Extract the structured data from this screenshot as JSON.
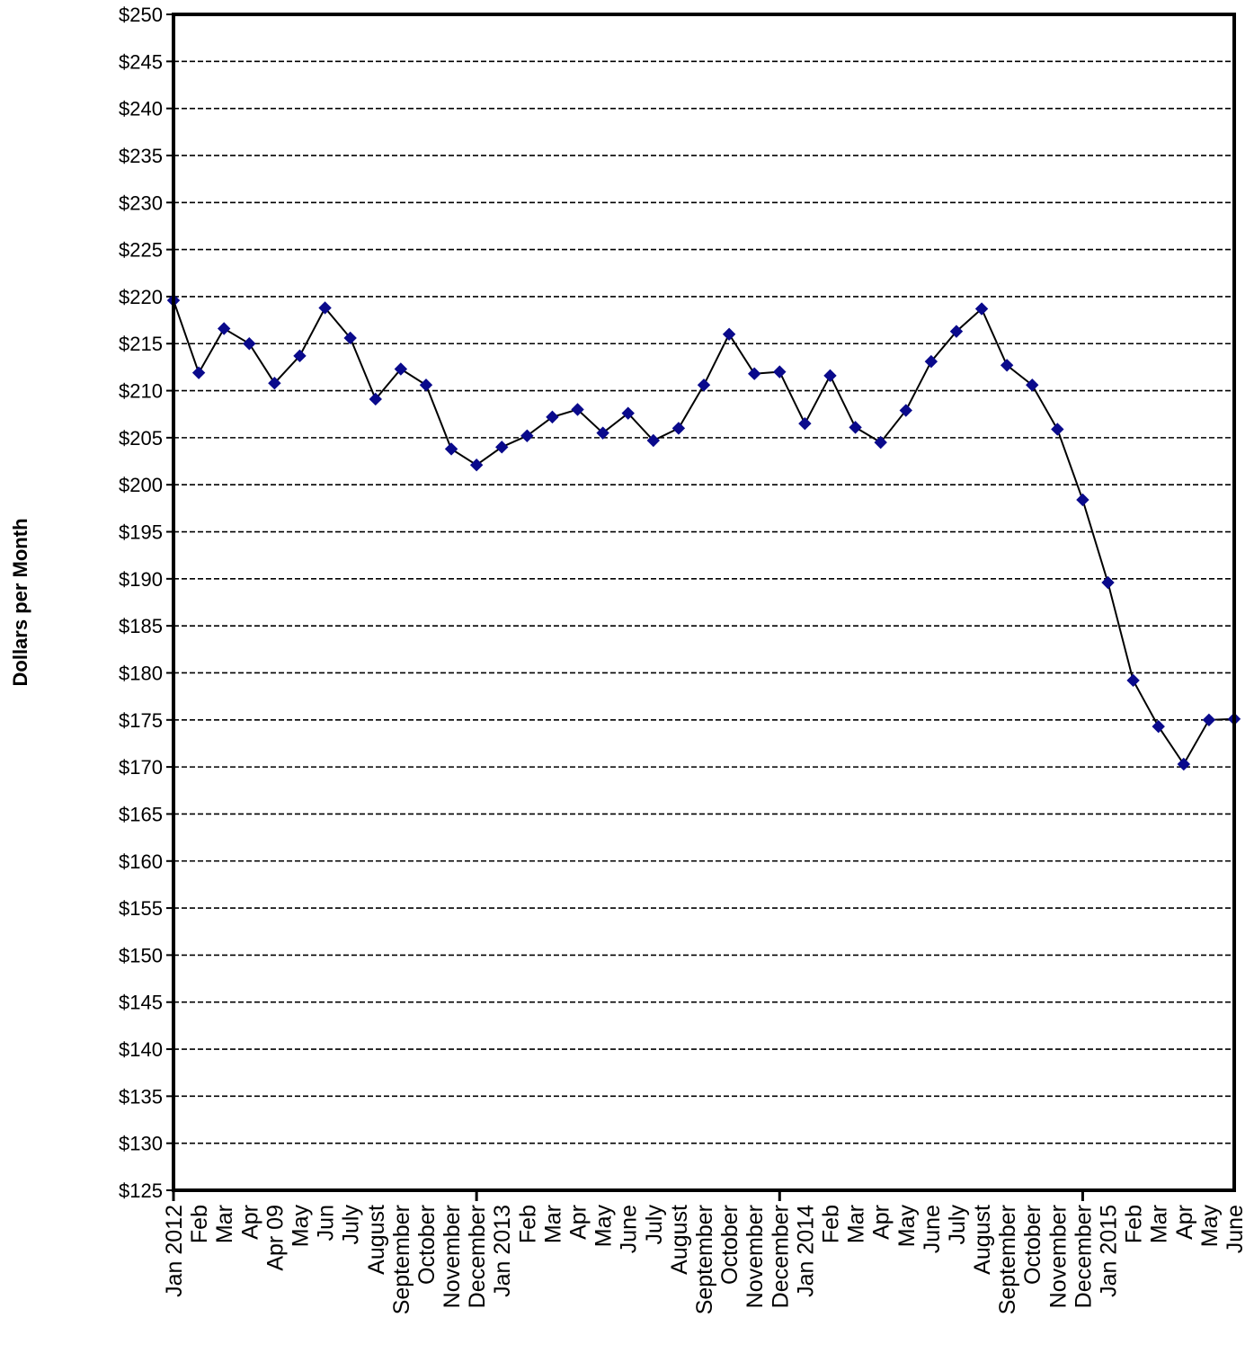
{
  "colors": {
    "line": "#000000",
    "marker": "#0A0A8C",
    "grid": "#000000",
    "background": "#ffffff"
  },
  "chart_data": {
    "type": "line",
    "title": "",
    "xlabel": "",
    "ylabel": "Dollars per Month",
    "ylim": [
      125,
      250
    ],
    "ytick_step": 5,
    "ytick_prefix": "$",
    "grid": true,
    "grid_style": "dashed",
    "legend": "none",
    "categories": [
      "Jan 2012",
      "Feb",
      "Mar",
      "Apr",
      "Apr 09",
      "May",
      "Jun",
      "July",
      "August",
      "September",
      "October",
      "November",
      "December",
      "Jan 2013",
      "Feb",
      "Mar",
      "Apr",
      "May",
      "June",
      "July",
      "August",
      "September",
      "October",
      "November",
      "December",
      "Jan 2014",
      "Feb",
      "Mar",
      "Apr",
      "May",
      "June",
      "July",
      "August",
      "September",
      "October",
      "November",
      "December",
      "Jan 2015",
      "Feb",
      "Mar",
      "Apr",
      "May",
      "June"
    ],
    "series": [
      {
        "values": [
          219.6,
          211.9,
          216.6,
          215.0,
          210.8,
          213.7,
          218.8,
          215.6,
          209.1,
          212.3,
          210.6,
          203.8,
          202.1,
          204.0,
          205.2,
          207.2,
          208.0,
          205.5,
          207.6,
          204.7,
          206.0,
          210.6,
          216.0,
          211.8,
          212.0,
          206.5,
          211.6,
          206.1,
          204.5,
          207.9,
          213.1,
          216.3,
          218.7,
          212.7,
          210.6,
          205.9,
          198.4,
          189.6,
          179.2,
          174.3,
          170.3,
          175.0,
          175.1
        ]
      }
    ]
  }
}
